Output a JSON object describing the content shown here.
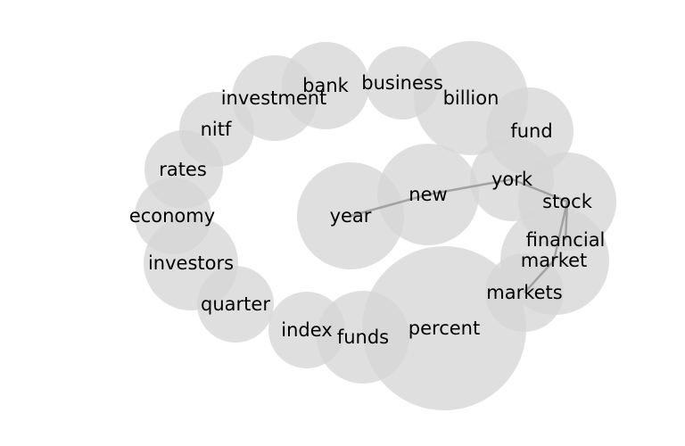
{
  "diagram": {
    "type": "word-bubble-network",
    "bubble_color": "#d6d6d6",
    "bubble_opacity": 0.78,
    "edge_color": "#999999",
    "text_color": "#000000",
    "nodes": [
      {
        "id": "percent",
        "label": "percent"
      },
      {
        "id": "billion",
        "label": "billion"
      },
      {
        "id": "financial",
        "label": "financial"
      },
      {
        "id": "year",
        "label": "year"
      },
      {
        "id": "new",
        "label": "new"
      },
      {
        "id": "stock",
        "label": "stock"
      },
      {
        "id": "funds",
        "label": "funds"
      },
      {
        "id": "investors",
        "label": "investors"
      },
      {
        "id": "bank",
        "label": "bank"
      },
      {
        "id": "fund",
        "label": "fund"
      },
      {
        "id": "investment",
        "label": "investment"
      },
      {
        "id": "york",
        "label": "york"
      },
      {
        "id": "market",
        "label": "market"
      },
      {
        "id": "index",
        "label": "index"
      },
      {
        "id": "markets",
        "label": "markets"
      },
      {
        "id": "economy",
        "label": "economy"
      },
      {
        "id": "rates",
        "label": "rates"
      },
      {
        "id": "quarter",
        "label": "quarter"
      },
      {
        "id": "business",
        "label": "business"
      },
      {
        "id": "nitf",
        "label": "nitf"
      }
    ],
    "edges": [
      {
        "source": "year",
        "target": "new"
      },
      {
        "source": "new",
        "target": "york"
      },
      {
        "source": "york",
        "target": "stock"
      },
      {
        "source": "stock",
        "target": "market"
      },
      {
        "source": "market",
        "target": "markets"
      },
      {
        "source": "stock",
        "target": "financial"
      }
    ]
  }
}
